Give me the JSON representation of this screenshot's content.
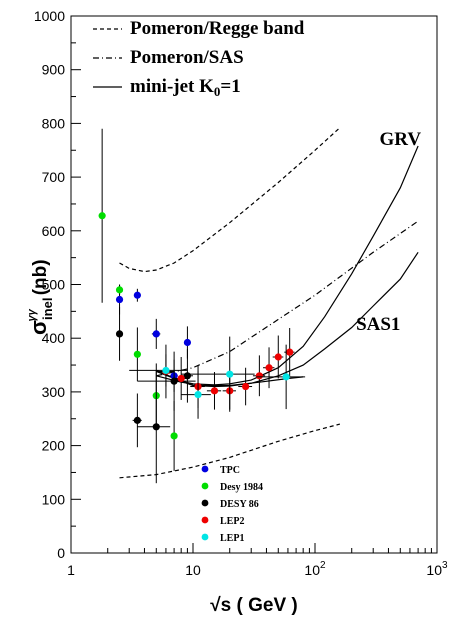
{
  "chart_data": {
    "type": "scatter",
    "xscale": "log",
    "xlim": [
      1,
      1000
    ],
    "ylim": [
      0,
      1000
    ],
    "xlabel": "√s ( GeV )",
    "ylabel": "σ inel γγ (nb)",
    "ylabel_main": "σ",
    "ylabel_sub": "inel",
    "ylabel_sup": "γγ",
    "ylabel_unit": "(nb)",
    "x_ticks": [
      {
        "value": 1,
        "label": "1"
      },
      {
        "value": 10,
        "label": "10"
      },
      {
        "value": 100,
        "label": "10",
        "exp": "2"
      },
      {
        "value": 1000,
        "label": "10",
        "exp": "3"
      }
    ],
    "y_ticks": [
      0,
      100,
      200,
      300,
      400,
      500,
      600,
      700,
      800,
      900,
      1000
    ],
    "legend_top": [
      {
        "label": "Pomeron/Regge band",
        "style": "dashed"
      },
      {
        "label": "Pomeron/SAS",
        "style": "dashdot"
      },
      {
        "label": "mini-jet K",
        "sub": "0",
        "suffix": "=1",
        "style": "solid"
      }
    ],
    "annotations": [
      {
        "text": "GRV",
        "x": 500,
        "y": 760
      },
      {
        "text": "SAS1",
        "x": 330,
        "y": 415
      }
    ],
    "curves": [
      {
        "name": "band-upper",
        "style": "dashed",
        "points": [
          [
            2.5,
            540
          ],
          [
            3,
            530
          ],
          [
            4,
            524
          ],
          [
            5,
            527
          ],
          [
            7,
            540
          ],
          [
            10,
            563
          ],
          [
            20,
            615
          ],
          [
            50,
            690
          ],
          [
            100,
            750
          ],
          [
            160,
            792
          ]
        ]
      },
      {
        "name": "band-lower",
        "style": "dashed",
        "points": [
          [
            2.5,
            140
          ],
          [
            5,
            146
          ],
          [
            10,
            160
          ],
          [
            20,
            178
          ],
          [
            50,
            208
          ],
          [
            100,
            228
          ],
          [
            160,
            240
          ]
        ]
      },
      {
        "name": "pomeron-sas",
        "style": "dashdot",
        "points": [
          [
            5,
            330
          ],
          [
            10,
            345
          ],
          [
            20,
            375
          ],
          [
            50,
            435
          ],
          [
            100,
            480
          ],
          [
            300,
            560
          ],
          [
            700,
            618
          ]
        ]
      },
      {
        "name": "grv",
        "style": "solid",
        "points": [
          [
            5,
            340
          ],
          [
            8,
            320
          ],
          [
            10,
            315
          ],
          [
            15,
            313
          ],
          [
            20,
            315
          ],
          [
            30,
            322
          ],
          [
            50,
            345
          ],
          [
            80,
            385
          ],
          [
            120,
            440
          ],
          [
            200,
            520
          ],
          [
            300,
            590
          ],
          [
            500,
            680
          ],
          [
            700,
            758
          ]
        ]
      },
      {
        "name": "sas1",
        "style": "solid",
        "points": [
          [
            5,
            338
          ],
          [
            8,
            320
          ],
          [
            10,
            312
          ],
          [
            15,
            310
          ],
          [
            20,
            311
          ],
          [
            30,
            316
          ],
          [
            50,
            330
          ],
          [
            80,
            350
          ],
          [
            120,
            380
          ],
          [
            200,
            420
          ],
          [
            300,
            460
          ],
          [
            500,
            510
          ],
          [
            700,
            560
          ]
        ]
      },
      {
        "name": "mini-jet-short",
        "style": "solid",
        "points": [
          [
            5,
            330
          ],
          [
            8,
            318
          ],
          [
            12,
            312
          ],
          [
            20,
            312
          ],
          [
            35,
            318
          ],
          [
            60,
            325
          ],
          [
            80,
            328
          ]
        ]
      }
    ],
    "series": [
      {
        "name": "TPC",
        "color": "#0000e0",
        "points": [
          {
            "x": 2.5,
            "y": 472,
            "xerr": 0.12,
            "yerr": 28
          },
          {
            "x": 3.5,
            "y": 480,
            "xerr": 0.2,
            "yerr": 12
          },
          {
            "x": 5.0,
            "y": 408,
            "xerr": 0.4,
            "yerr": 28
          },
          {
            "x": 7.0,
            "y": 330,
            "xerr": 0.5,
            "yerr": 30
          },
          {
            "x": 9.0,
            "y": 392,
            "xerr": 0.5,
            "yerr": 30
          }
        ]
      },
      {
        "name": "Desy 1984",
        "color": "#00dd00",
        "points": [
          {
            "x": 1.8,
            "y": 628,
            "xerr": 0.05,
            "yerr": 162
          },
          {
            "x": 2.5,
            "y": 490,
            "xerr": 0.05,
            "yerr": 10
          },
          {
            "x": 3.5,
            "y": 370,
            "xerr": 0.1,
            "yerr": 50
          },
          {
            "x": 5.0,
            "y": 293,
            "xerr": 0.3,
            "yerr": 60
          },
          {
            "x": 7.0,
            "y": 218,
            "xerr": 0.3,
            "yerr": 65
          }
        ]
      },
      {
        "name": "DESY 86",
        "color": "#000000",
        "points": [
          {
            "x": 2.5,
            "y": 408,
            "xerr": 0.05,
            "yerr": 50
          },
          {
            "x": 3.5,
            "y": 247,
            "xerr": 0.3,
            "yerr": 50
          },
          {
            "x": 5.0,
            "y": 235,
            "xerr": 1.5,
            "yerr": 105
          },
          {
            "x": 7.0,
            "y": 320,
            "xerr": 3.5,
            "yerr": 55
          },
          {
            "x": 9.0,
            "y": 330,
            "xerr": 1.0,
            "yerr": 50
          }
        ]
      },
      {
        "name": "LEP2",
        "color": "#ee0000",
        "points": [
          {
            "x": 6.0,
            "y": 338,
            "xerr": 1.0,
            "yerr": 50
          },
          {
            "x": 8.0,
            "y": 325,
            "xerr": 1.0,
            "yerr": 40
          },
          {
            "x": 11.0,
            "y": 310,
            "xerr": 1.5,
            "yerr": 40
          },
          {
            "x": 15.0,
            "y": 302,
            "xerr": 2.0,
            "yerr": 35
          },
          {
            "x": 20.0,
            "y": 302,
            "xerr": 2.5,
            "yerr": 35
          },
          {
            "x": 27.0,
            "y": 310,
            "xerr": 3.5,
            "yerr": 35
          },
          {
            "x": 35.0,
            "y": 330,
            "xerr": 4.0,
            "yerr": 38
          },
          {
            "x": 42.0,
            "y": 345,
            "xerr": 4.5,
            "yerr": 38
          },
          {
            "x": 50.0,
            "y": 365,
            "xerr": 5.0,
            "yerr": 40
          },
          {
            "x": 62.0,
            "y": 374,
            "xerr": 6.0,
            "yerr": 45
          }
        ]
      },
      {
        "name": "LEP1",
        "color": "#00e5e5",
        "points": [
          {
            "x": 6.0,
            "y": 340,
            "xerr": 3.0,
            "yerr": 30
          },
          {
            "x": 11.0,
            "y": 295,
            "xerr": 3.0,
            "yerr": 45
          },
          {
            "x": 20.0,
            "y": 333,
            "xerr": 12.0,
            "yerr": 70
          },
          {
            "x": 58.0,
            "y": 328,
            "xerr": 25.0,
            "yerr": 60
          }
        ]
      }
    ]
  }
}
